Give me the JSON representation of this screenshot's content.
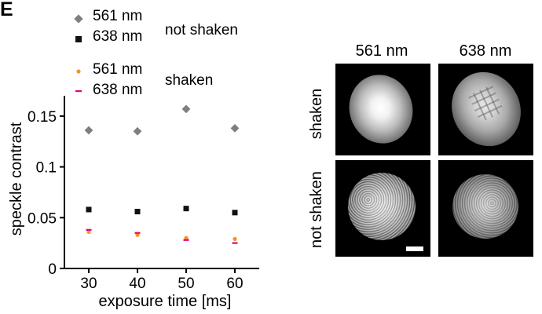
{
  "panel_label": "E",
  "legend": {
    "items": [
      {
        "label": "561 nm",
        "marker": "diamond",
        "color": "#7f7f7f"
      },
      {
        "label": "638 nm",
        "marker": "square",
        "color": "#111111"
      },
      {
        "label": "561 nm",
        "marker": "dot",
        "color": "#f7941d"
      },
      {
        "label": "638 nm",
        "marker": "dash",
        "color": "#e6007e"
      }
    ],
    "group_not_shaken": "not shaken",
    "group_shaken": "shaken"
  },
  "chart_data": {
    "type": "scatter",
    "xlabel": "exposure time [ms]",
    "ylabel": "speckle contrast",
    "x": [
      30,
      40,
      50,
      60
    ],
    "xticks": [
      "30",
      "40",
      "50",
      "60"
    ],
    "yticks": [
      "0",
      "0.05",
      "0.1",
      "0.15"
    ],
    "ytick_values": [
      0,
      0.05,
      0.1,
      0.15
    ],
    "xlim": [
      25,
      65
    ],
    "ylim": [
      0,
      0.17
    ],
    "grid": false,
    "legend_position": "top-left, above plot",
    "series": [
      {
        "name": "561 nm not shaken",
        "marker": "diamond",
        "color": "#7f7f7f",
        "values": [
          0.136,
          0.135,
          0.157,
          0.138
        ]
      },
      {
        "name": "638 nm not shaken",
        "marker": "square",
        "color": "#111111",
        "values": [
          0.058,
          0.056,
          0.059,
          0.055
        ]
      },
      {
        "name": "561 nm shaken",
        "marker": "dot",
        "color": "#f7941d",
        "values": [
          0.036,
          0.033,
          0.03,
          0.029
        ]
      },
      {
        "name": "638 nm shaken",
        "marker": "dash",
        "color": "#e6007e",
        "values": [
          0.038,
          0.035,
          0.028,
          0.025
        ]
      }
    ]
  },
  "images": {
    "columns": [
      "561 nm",
      "638 nm"
    ],
    "rows": [
      "shaken",
      "not shaken"
    ],
    "cells": [
      {
        "row": "shaken",
        "column": "561 nm",
        "pattern": "smooth"
      },
      {
        "row": "shaken",
        "column": "638 nm",
        "pattern": "smooth-grid"
      },
      {
        "row": "not shaken",
        "column": "561 nm",
        "pattern": "speckle-strong"
      },
      {
        "row": "not shaken",
        "column": "638 nm",
        "pattern": "speckle-weak"
      }
    ]
  }
}
